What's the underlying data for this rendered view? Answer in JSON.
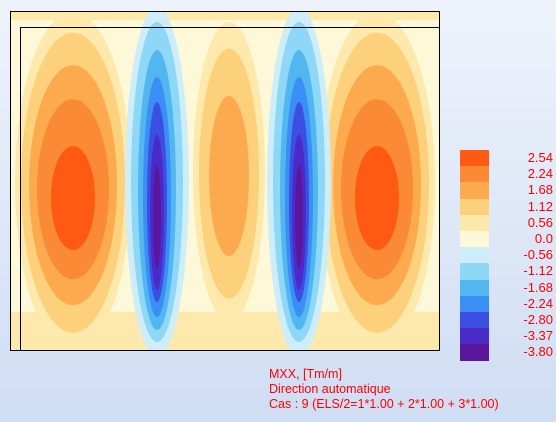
{
  "chart_data": {
    "type": "heatmap",
    "title": "",
    "legend": {
      "position": "right",
      "entries": [
        {
          "label": "2.54",
          "color": "#ff5a14"
        },
        {
          "label": "2.24",
          "color": "#fb8a36"
        },
        {
          "label": "1.68",
          "color": "#fdaa4e"
        },
        {
          "label": "1.12",
          "color": "#fdd07b"
        },
        {
          "label": "0.56",
          "color": "#fde9ac"
        },
        {
          "label": "0.0",
          "color": "#fdf8d7"
        },
        {
          "label": "-0.56",
          "color": "#cdeef9"
        },
        {
          "label": "-1.12",
          "color": "#8fd7f6"
        },
        {
          "label": "-1.68",
          "color": "#52b7f0"
        },
        {
          "label": "-2.24",
          "color": "#3a8ef5"
        },
        {
          "label": "-2.80",
          "color": "#3b4fe3"
        },
        {
          "label": "-3.37",
          "color": "#4a2bc7"
        },
        {
          "label": "-3.80",
          "color": "#5a169c"
        }
      ]
    },
    "value_range": [
      -3.8,
      2.54
    ],
    "pattern": "alternating vertical bands: positive lobes near left and right edges and centre, negative bands between them",
    "peaks": {
      "max": 2.54,
      "min": -3.8
    }
  },
  "caption": {
    "line1": "MXX, [Tm/m]",
    "line2": "Direction automatique",
    "line3": "Cas : 9 (ELS/2=1*1.00 + 2*1.00 + 3*1.00)"
  }
}
